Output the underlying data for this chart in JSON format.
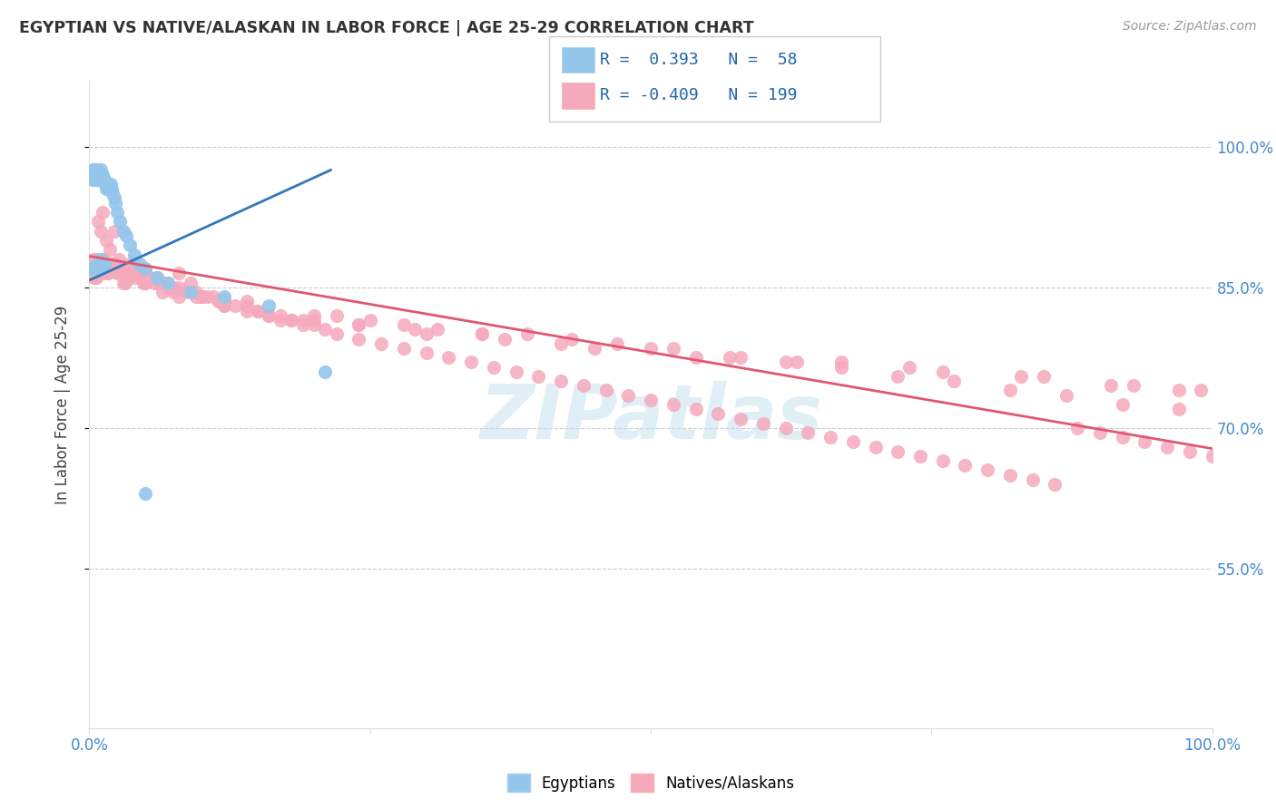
{
  "title": "EGYPTIAN VS NATIVE/ALASKAN IN LABOR FORCE | AGE 25-29 CORRELATION CHART",
  "source": "Source: ZipAtlas.com",
  "ylabel": "In Labor Force | Age 25-29",
  "ytick_labels": [
    "100.0%",
    "85.0%",
    "70.0%",
    "55.0%"
  ],
  "ytick_values": [
    1.0,
    0.85,
    0.7,
    0.55
  ],
  "xlim": [
    0.0,
    1.0
  ],
  "ylim": [
    0.38,
    1.07
  ],
  "legend_R_blue": "0.393",
  "legend_N_blue": "58",
  "legend_R_pink": "-0.409",
  "legend_N_pink": "199",
  "blue_color": "#94C6EC",
  "pink_color": "#F5AABC",
  "trendline_blue": "#3377BB",
  "trendline_pink": "#E05870",
  "watermark": "ZIPatlas",
  "blue_trend_x": [
    0.001,
    0.215
  ],
  "blue_trend_y": [
    0.858,
    0.975
  ],
  "pink_trend_x": [
    0.001,
    1.0
  ],
  "pink_trend_y": [
    0.883,
    0.678
  ],
  "blue_points_x": [
    0.002,
    0.003,
    0.003,
    0.004,
    0.004,
    0.005,
    0.005,
    0.006,
    0.006,
    0.006,
    0.007,
    0.007,
    0.007,
    0.008,
    0.008,
    0.008,
    0.009,
    0.009,
    0.01,
    0.01,
    0.01,
    0.011,
    0.011,
    0.012,
    0.012,
    0.013,
    0.014,
    0.015,
    0.016,
    0.017,
    0.018,
    0.019,
    0.02,
    0.021,
    0.022,
    0.023,
    0.025,
    0.027,
    0.03,
    0.033,
    0.036,
    0.04,
    0.045,
    0.05,
    0.06,
    0.07,
    0.09,
    0.12,
    0.16,
    0.21,
    0.006,
    0.007,
    0.008,
    0.009,
    0.01,
    0.011,
    0.013,
    0.05
  ],
  "blue_points_y": [
    0.87,
    0.965,
    0.97,
    0.975,
    0.975,
    0.97,
    0.975,
    0.965,
    0.97,
    0.975,
    0.965,
    0.97,
    0.975,
    0.965,
    0.97,
    0.965,
    0.97,
    0.97,
    0.97,
    0.965,
    0.975,
    0.97,
    0.965,
    0.97,
    0.965,
    0.965,
    0.96,
    0.955,
    0.96,
    0.955,
    0.955,
    0.96,
    0.955,
    0.95,
    0.945,
    0.94,
    0.93,
    0.92,
    0.91,
    0.905,
    0.895,
    0.885,
    0.875,
    0.87,
    0.86,
    0.855,
    0.845,
    0.84,
    0.83,
    0.76,
    0.87,
    0.875,
    0.87,
    0.875,
    0.88,
    0.87,
    0.875,
    0.63
  ],
  "pink_points_x": [
    0.003,
    0.004,
    0.005,
    0.006,
    0.007,
    0.008,
    0.009,
    0.01,
    0.011,
    0.012,
    0.013,
    0.014,
    0.015,
    0.016,
    0.017,
    0.018,
    0.019,
    0.02,
    0.022,
    0.024,
    0.026,
    0.028,
    0.03,
    0.033,
    0.036,
    0.04,
    0.043,
    0.046,
    0.05,
    0.054,
    0.058,
    0.062,
    0.066,
    0.07,
    0.075,
    0.08,
    0.085,
    0.09,
    0.095,
    0.1,
    0.105,
    0.11,
    0.115,
    0.12,
    0.13,
    0.14,
    0.15,
    0.16,
    0.17,
    0.18,
    0.19,
    0.2,
    0.21,
    0.22,
    0.24,
    0.26,
    0.28,
    0.3,
    0.32,
    0.34,
    0.36,
    0.38,
    0.4,
    0.42,
    0.44,
    0.46,
    0.48,
    0.5,
    0.52,
    0.54,
    0.56,
    0.58,
    0.6,
    0.62,
    0.64,
    0.66,
    0.68,
    0.7,
    0.72,
    0.74,
    0.76,
    0.78,
    0.8,
    0.82,
    0.84,
    0.86,
    0.88,
    0.9,
    0.92,
    0.94,
    0.96,
    0.98,
    1.0,
    0.008,
    0.01,
    0.012,
    0.015,
    0.018,
    0.022,
    0.026,
    0.03,
    0.035,
    0.04,
    0.05,
    0.06,
    0.07,
    0.08,
    0.09,
    0.1,
    0.12,
    0.14,
    0.16,
    0.18,
    0.2,
    0.22,
    0.25,
    0.28,
    0.31,
    0.35,
    0.39,
    0.43,
    0.47,
    0.52,
    0.57,
    0.62,
    0.67,
    0.72,
    0.77,
    0.82,
    0.87,
    0.92,
    0.97,
    0.006,
    0.009,
    0.013,
    0.017,
    0.021,
    0.025,
    0.03,
    0.038,
    0.048,
    0.06,
    0.075,
    0.095,
    0.115,
    0.14,
    0.17,
    0.2,
    0.24,
    0.29,
    0.35,
    0.42,
    0.5,
    0.58,
    0.67,
    0.76,
    0.85,
    0.93,
    0.99,
    0.004,
    0.006,
    0.008,
    0.01,
    0.013,
    0.016,
    0.02,
    0.025,
    0.032,
    0.04,
    0.05,
    0.065,
    0.08,
    0.1,
    0.12,
    0.15,
    0.19,
    0.24,
    0.3,
    0.37,
    0.45,
    0.54,
    0.63,
    0.73,
    0.83,
    0.91,
    0.97
  ],
  "pink_points_y": [
    0.87,
    0.88,
    0.86,
    0.865,
    0.87,
    0.875,
    0.87,
    0.875,
    0.87,
    0.875,
    0.865,
    0.87,
    0.875,
    0.87,
    0.865,
    0.87,
    0.875,
    0.87,
    0.87,
    0.875,
    0.865,
    0.87,
    0.87,
    0.87,
    0.875,
    0.87,
    0.865,
    0.86,
    0.865,
    0.86,
    0.855,
    0.855,
    0.855,
    0.85,
    0.85,
    0.85,
    0.845,
    0.845,
    0.845,
    0.84,
    0.84,
    0.84,
    0.835,
    0.835,
    0.83,
    0.825,
    0.825,
    0.82,
    0.815,
    0.815,
    0.81,
    0.81,
    0.805,
    0.8,
    0.795,
    0.79,
    0.785,
    0.78,
    0.775,
    0.77,
    0.765,
    0.76,
    0.755,
    0.75,
    0.745,
    0.74,
    0.735,
    0.73,
    0.725,
    0.72,
    0.715,
    0.71,
    0.705,
    0.7,
    0.695,
    0.69,
    0.685,
    0.68,
    0.675,
    0.67,
    0.665,
    0.66,
    0.655,
    0.65,
    0.645,
    0.64,
    0.7,
    0.695,
    0.69,
    0.685,
    0.68,
    0.675,
    0.67,
    0.92,
    0.91,
    0.93,
    0.9,
    0.89,
    0.91,
    0.88,
    0.865,
    0.86,
    0.87,
    0.855,
    0.86,
    0.855,
    0.865,
    0.855,
    0.84,
    0.83,
    0.835,
    0.82,
    0.815,
    0.815,
    0.82,
    0.815,
    0.81,
    0.805,
    0.8,
    0.8,
    0.795,
    0.79,
    0.785,
    0.775,
    0.77,
    0.765,
    0.755,
    0.75,
    0.74,
    0.735,
    0.725,
    0.72,
    0.88,
    0.875,
    0.87,
    0.865,
    0.875,
    0.87,
    0.855,
    0.865,
    0.855,
    0.86,
    0.845,
    0.84,
    0.835,
    0.83,
    0.82,
    0.82,
    0.81,
    0.805,
    0.8,
    0.79,
    0.785,
    0.775,
    0.77,
    0.76,
    0.755,
    0.745,
    0.74,
    0.86,
    0.86,
    0.875,
    0.865,
    0.88,
    0.875,
    0.87,
    0.865,
    0.855,
    0.86,
    0.855,
    0.845,
    0.84,
    0.84,
    0.83,
    0.825,
    0.815,
    0.81,
    0.8,
    0.795,
    0.785,
    0.775,
    0.77,
    0.765,
    0.755,
    0.745,
    0.74
  ]
}
